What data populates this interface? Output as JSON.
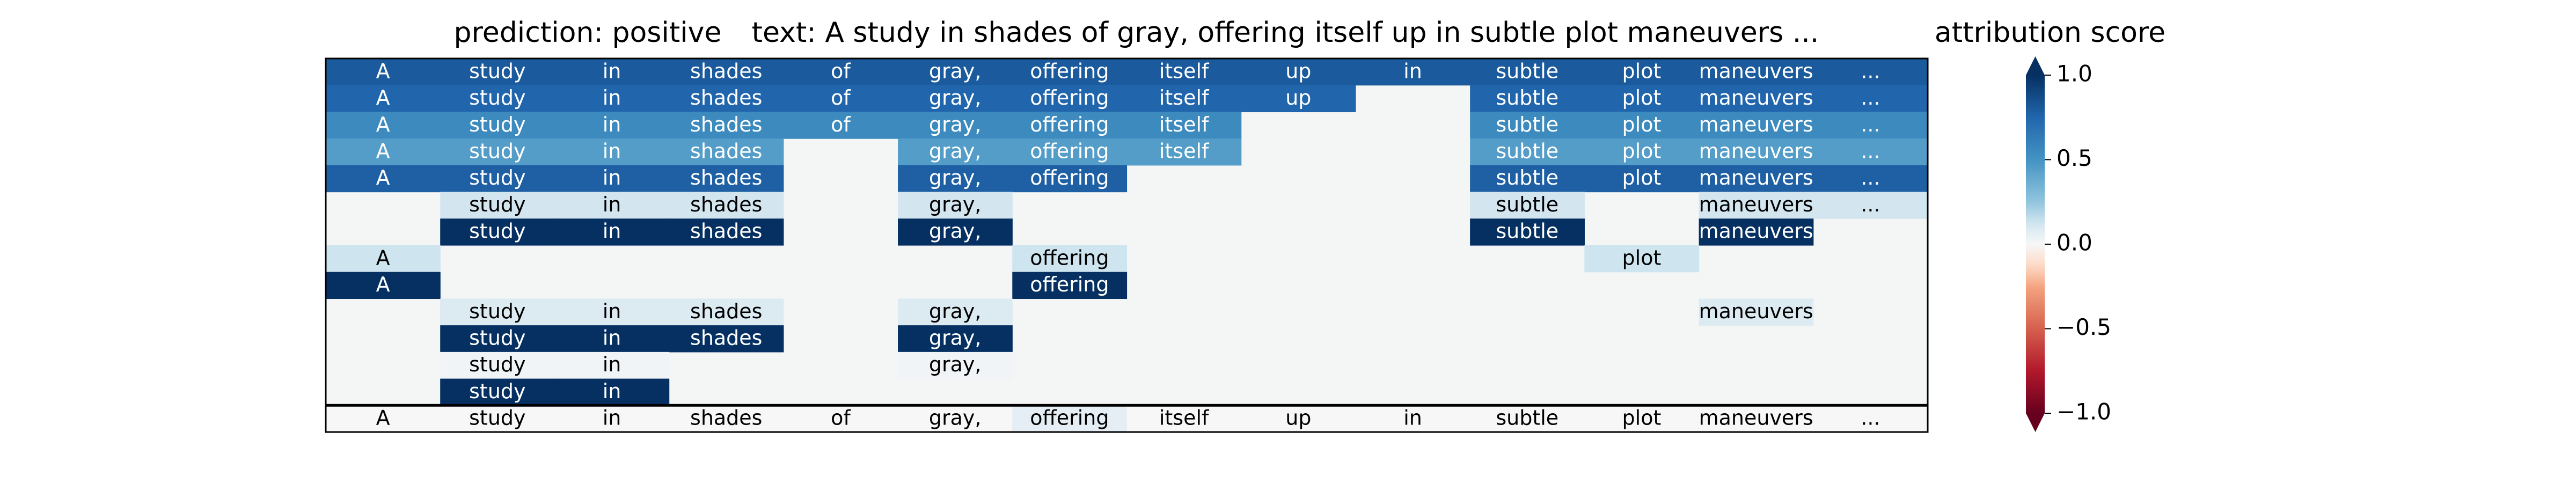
{
  "chart_data": {
    "type": "heatmap",
    "header": {
      "prediction": "prediction:  positive",
      "text": "text:  A study in shades of gray, offering itself up in subtle plot maneuvers ...",
      "colorbar_title": "attribution score"
    },
    "columns": [
      "A",
      "study",
      "in",
      "shades",
      "of",
      "gray,",
      "offering",
      "itself",
      "up",
      "in",
      "subtle",
      "plot",
      "maneuvers",
      "..."
    ],
    "rows": [
      [
        0.8,
        0.8,
        0.8,
        0.8,
        0.8,
        0.8,
        0.8,
        0.8,
        0.8,
        0.8,
        0.8,
        0.8,
        0.8,
        0.8
      ],
      [
        0.75,
        0.75,
        0.75,
        0.75,
        0.75,
        0.75,
        0.75,
        0.75,
        0.75,
        null,
        0.75,
        0.75,
        0.75,
        0.75
      ],
      [
        0.55,
        0.55,
        0.55,
        0.55,
        0.55,
        0.55,
        0.55,
        0.55,
        null,
        null,
        0.55,
        0.55,
        0.55,
        0.55
      ],
      [
        0.45,
        0.45,
        0.45,
        0.45,
        null,
        0.45,
        0.45,
        0.45,
        null,
        null,
        0.45,
        0.45,
        0.45,
        0.45
      ],
      [
        0.78,
        0.78,
        0.78,
        0.78,
        null,
        0.78,
        0.78,
        null,
        null,
        null,
        0.78,
        0.78,
        0.78,
        0.78
      ],
      [
        null,
        0.12,
        0.12,
        0.12,
        null,
        0.12,
        null,
        null,
        null,
        null,
        0.12,
        null,
        0.12,
        0.12
      ],
      [
        null,
        1.0,
        1.0,
        1.0,
        null,
        1.0,
        null,
        null,
        null,
        null,
        1.0,
        null,
        1.0,
        null
      ],
      [
        0.13,
        null,
        null,
        null,
        null,
        null,
        0.13,
        null,
        null,
        null,
        null,
        0.13,
        null,
        null
      ],
      [
        1.0,
        null,
        null,
        null,
        null,
        null,
        1.0,
        null,
        null,
        null,
        null,
        null,
        null,
        null
      ],
      [
        null,
        0.09,
        0.09,
        0.09,
        null,
        0.09,
        null,
        null,
        null,
        null,
        null,
        null,
        0.09,
        null
      ],
      [
        null,
        1.0,
        1.0,
        1.0,
        null,
        1.0,
        null,
        null,
        null,
        null,
        null,
        null,
        null,
        null
      ],
      [
        null,
        0.02,
        0.02,
        null,
        null,
        0.02,
        null,
        null,
        null,
        null,
        null,
        null,
        null,
        null
      ],
      [
        null,
        1.0,
        1.0,
        null,
        null,
        null,
        null,
        null,
        null,
        null,
        null,
        null,
        null,
        null
      ],
      [
        0.0,
        0.0,
        0.0,
        0.0,
        0.0,
        0.0,
        0.06,
        0.0,
        0.0,
        0.0,
        0.0,
        0.0,
        0.0,
        0.0
      ]
    ],
    "colorbar": {
      "range": [
        -1.0,
        1.0
      ],
      "ticks": [
        1.0,
        0.5,
        0.0,
        -0.5,
        -1.0
      ],
      "tick_labels": [
        "1.0",
        "0.5",
        "0.0",
        "−0.5",
        "−1.0"
      ],
      "colormap": "RdBu",
      "extend": "both"
    }
  }
}
